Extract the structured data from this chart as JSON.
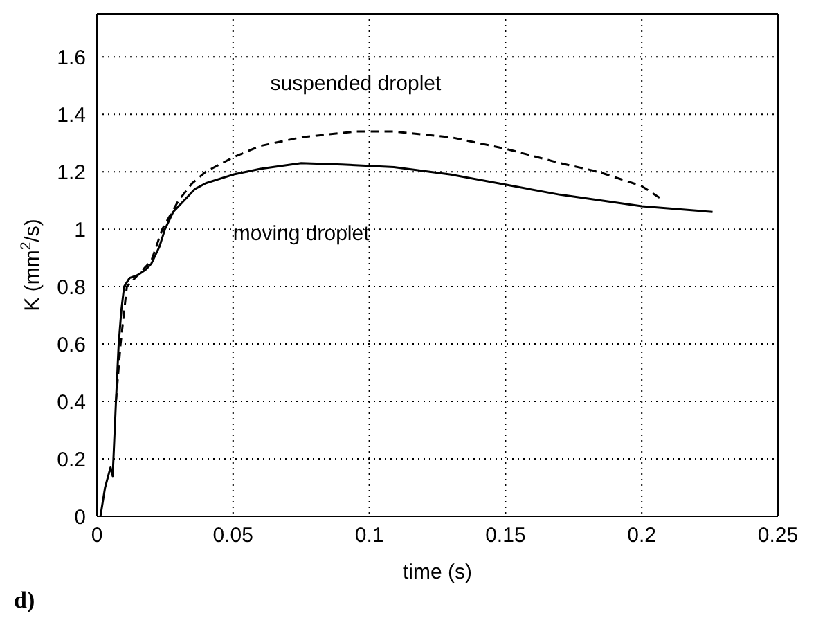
{
  "chart_data": {
    "type": "line",
    "xlabel": "time (s)",
    "ylabel": "K (mm$^{2}$/s)",
    "xlim": [
      0,
      0.25
    ],
    "xticks": [
      0,
      0.05,
      0.1,
      0.15,
      0.2,
      0.25
    ],
    "ylim": [
      0,
      1.75
    ],
    "yticks": [
      0,
      0.2,
      0.4,
      0.6,
      0.8,
      1,
      1.2,
      1.4,
      1.6
    ],
    "grid": true,
    "legend": false,
    "marker": "none",
    "series": [
      {
        "name": "moving droplet",
        "color": "#000000",
        "line_style": "solid",
        "x": [
          0.0013,
          0.003,
          0.005,
          0.0058,
          0.007,
          0.008,
          0.009,
          0.01,
          0.012,
          0.015,
          0.018,
          0.02,
          0.023,
          0.025,
          0.028,
          0.032,
          0.036,
          0.04,
          0.05,
          0.06,
          0.075,
          0.09,
          0.109,
          0.13,
          0.15,
          0.17,
          0.2,
          0.226
        ],
        "values": [
          0,
          0.1,
          0.17,
          0.14,
          0.4,
          0.6,
          0.72,
          0.8,
          0.83,
          0.84,
          0.86,
          0.88,
          0.94,
          1.0,
          1.06,
          1.1,
          1.14,
          1.16,
          1.19,
          1.21,
          1.23,
          1.225,
          1.216,
          1.19,
          1.155,
          1.12,
          1.08,
          1.06
        ]
      },
      {
        "name": "suspended droplet",
        "color": "#000000",
        "line_style": "dashed",
        "x": [
          0.007,
          0.0087,
          0.011,
          0.015,
          0.02,
          0.024,
          0.03,
          0.035,
          0.04,
          0.05,
          0.06,
          0.075,
          0.095,
          0.109,
          0.13,
          0.15,
          0.17,
          0.184,
          0.2,
          0.208
        ],
        "values": [
          0.4,
          0.6,
          0.8,
          0.84,
          0.89,
          1.0,
          1.1,
          1.16,
          1.2,
          1.25,
          1.29,
          1.32,
          1.34,
          1.34,
          1.32,
          1.28,
          1.23,
          1.2,
          1.15,
          1.1
        ]
      }
    ],
    "annotations": [
      "d)"
    ]
  }
}
